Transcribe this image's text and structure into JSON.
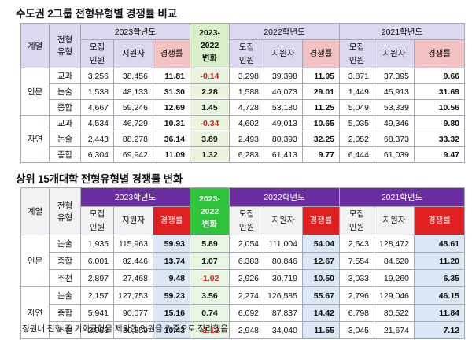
{
  "colors": {
    "header_light_purple": "#dcd7ee",
    "header_dark_purple": "#6b2ea0",
    "diff_header_light_green": "#d9efc9",
    "diff_header_green": "#2fc33c",
    "rate_header_pink": "#f3c3c3",
    "rate_header_red": "#e02020",
    "negative_red": "#d42020"
  },
  "table1": {
    "title": "수도권 2그룹 전형유형별 경쟁률 비교",
    "header": {
      "category": "계열",
      "type": "전형\n유형",
      "year2023": "2023학년도",
      "diff": "2023-\n2022\n변화",
      "year2022": "2022학년도",
      "year2021": "2021학년도",
      "seats": "모집\n인원",
      "applicants": "지원자",
      "rate": "경쟁률"
    },
    "groups": [
      {
        "category": "인문",
        "rows": [
          {
            "type": "교과",
            "s23": "3,256",
            "a23": "38,456",
            "r23": "11.81",
            "diff": "-0.14",
            "s22": "3,298",
            "a22": "39,398",
            "r22": "11.95",
            "s21": "3,871",
            "a21": "37,395",
            "r21": "9.66"
          },
          {
            "type": "논술",
            "s23": "1,538",
            "a23": "48,133",
            "r23": "31.30",
            "diff": "2.28",
            "s22": "1,588",
            "a22": "46,073",
            "r22": "29.01",
            "s21": "1,449",
            "a21": "45,913",
            "r21": "31.69"
          },
          {
            "type": "종합",
            "s23": "4,667",
            "a23": "59,246",
            "r23": "12.69",
            "diff": "1.45",
            "s22": "4,728",
            "a22": "53,180",
            "r22": "11.25",
            "s21": "5,049",
            "a21": "53,339",
            "r21": "10.56"
          }
        ]
      },
      {
        "category": "자연",
        "rows": [
          {
            "type": "교과",
            "s23": "4,534",
            "a23": "46,729",
            "r23": "10.31",
            "diff": "-0.34",
            "s22": "4,602",
            "a22": "49,013",
            "r22": "10.65",
            "s21": "5,035",
            "a21": "49,346",
            "r21": "9.80"
          },
          {
            "type": "논술",
            "s23": "2,443",
            "a23": "88,278",
            "r23": "36.14",
            "diff": "3.89",
            "s22": "2,493",
            "a22": "80,393",
            "r22": "32.25",
            "s21": "2,052",
            "a21": "68,373",
            "r21": "33.32"
          },
          {
            "type": "종합",
            "s23": "6,304",
            "a23": "69,942",
            "r23": "11.09",
            "diff": "1.32",
            "s22": "6,283",
            "a22": "61,413",
            "r22": "9.77",
            "s21": "6,444",
            "a21": "61,039",
            "r21": "9.47"
          }
        ]
      }
    ]
  },
  "table2": {
    "title": "상위 15개대학 전형유형별 경쟁률 변화",
    "header": {
      "category": "계열",
      "type": "전형\n유형",
      "year2023": "2023학년도",
      "diff": "2023-\n2022\n변화",
      "year2022": "2022학년도",
      "year2021": "2021학년도",
      "seats": "모집\n인원",
      "applicants": "지원자",
      "rate": "경쟁률"
    },
    "groups": [
      {
        "category": "인문",
        "rows": [
          {
            "type": "논술",
            "s23": "1,935",
            "a23": "115,963",
            "r23": "59.93",
            "diff": "5.89",
            "s22": "2,054",
            "a22": "111,004",
            "r22": "54.04",
            "s21": "2,643",
            "a21": "128,472",
            "r21": "48.61"
          },
          {
            "type": "종합",
            "s23": "6,001",
            "a23": "82,446",
            "r23": "13.74",
            "diff": "1.07",
            "s22": "6,383",
            "a22": "80,846",
            "r22": "12.67",
            "s21": "7,554",
            "a21": "84,620",
            "r21": "11.20"
          },
          {
            "type": "추천",
            "s23": "2,897",
            "a23": "27,468",
            "r23": "9.48",
            "diff": "-1.02",
            "s22": "2,926",
            "a22": "30,719",
            "r22": "10.50",
            "s21": "3,033",
            "a21": "19,260",
            "r21": "6.35"
          }
        ]
      },
      {
        "category": "자연",
        "rows": [
          {
            "type": "논술",
            "s23": "2,157",
            "a23": "127,753",
            "r23": "59.23",
            "diff": "3.56",
            "s22": "2,274",
            "a22": "126,585",
            "r22": "55.67",
            "s21": "2,796",
            "a21": "129,046",
            "r21": "46.15"
          },
          {
            "type": "종합",
            "s23": "5,941",
            "a23": "90,077",
            "r23": "15.16",
            "diff": "0.74",
            "s22": "6,092",
            "a22": "87,837",
            "r22": "14.42",
            "s21": "6,798",
            "a21": "80,522",
            "r21": "11.84"
          },
          {
            "type": "추천",
            "s23": "2,958",
            "a23": "30,859",
            "r23": "10.43",
            "diff": "-1.12",
            "s22": "2,948",
            "a22": "34,040",
            "r22": "11.55",
            "s21": "3,045",
            "a21": "21,674",
            "r21": "7.12"
          }
        ]
      }
    ]
  },
  "footnote": "정원내 전형 중 기회균형을 제외한 인원을 기준으로 정리했음."
}
